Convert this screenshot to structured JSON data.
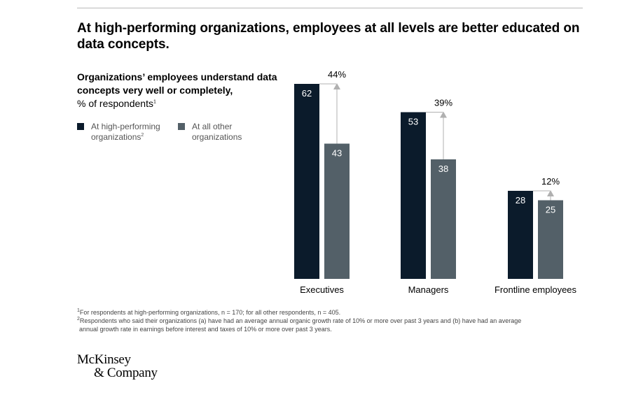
{
  "title": "At high-performing organizations, employees at all levels are better educated on data concepts.",
  "subtitle": {
    "bold": "Organizations’ employees understand data concepts very well or completely,",
    "normal": "% of respondents",
    "sup": "1"
  },
  "legend": [
    {
      "label": "At high-performing organizations",
      "sup": "2",
      "color": "#0b1b2b"
    },
    {
      "label": "At all other organizations",
      "sup": "",
      "color": "#536068"
    }
  ],
  "chart_data": {
    "type": "bar",
    "categories": [
      "Executives",
      "Managers",
      "Frontline employees"
    ],
    "series": [
      {
        "name": "At high-performing organizations",
        "values": [
          62,
          53,
          28
        ],
        "color": "#0b1b2b"
      },
      {
        "name": "At all other organizations",
        "values": [
          43,
          38,
          25
        ],
        "color": "#536068"
      }
    ],
    "annotations": [
      "44%",
      "39%",
      "12%"
    ],
    "ylim": [
      0,
      62
    ],
    "grid": false,
    "xlabel": "",
    "ylabel": "",
    "legend_position": "left"
  },
  "footnotes": [
    {
      "sup": "1",
      "text": "For respondents at high-performing organizations, n = 170; for all other respondents, n = 405."
    },
    {
      "sup": "2",
      "text": "Respondents who said their organizations (a) have had an average annual organic growth rate of 10% or more over past 3 years and (b) have had an average"
    },
    {
      "sup": "",
      "text": "annual growth rate in earnings before interest and taxes of 10% or more over past 3 years."
    }
  ],
  "logo": {
    "line1": "McKinsey",
    "line2": "& Company"
  }
}
